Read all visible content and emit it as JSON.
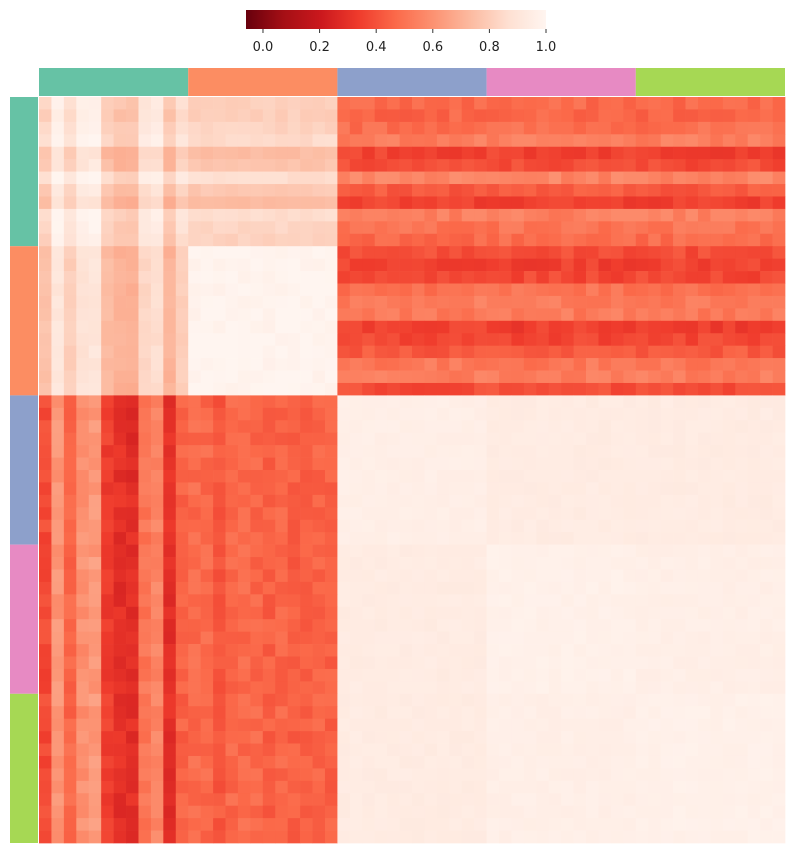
{
  "chart_data": {
    "type": "heatmap",
    "title": "",
    "xlabel": "",
    "ylabel": "",
    "colorbar": {
      "colormap": "Reds_r",
      "range": [
        -0.06,
        1.0
      ],
      "ticks": [
        0.0,
        0.2,
        0.4,
        0.6,
        0.8,
        1.0
      ],
      "tick_labels": [
        "0.0",
        "0.2",
        "0.4",
        "0.6",
        "0.8",
        "1.0"
      ],
      "placement": "top-center"
    },
    "groups": [
      {
        "color": "#66c2a5"
      },
      {
        "color": "#fc8d62"
      },
      {
        "color": "#8da0cb"
      },
      {
        "color": "#e78ac3"
      },
      {
        "color": "#a6d854"
      }
    ],
    "block_means": [
      [
        0.85,
        0.8,
        0.45,
        0.45,
        0.45
      ],
      [
        0.8,
        0.99,
        0.45,
        0.45,
        0.45
      ],
      [
        0.45,
        0.45,
        0.96,
        0.94,
        0.94
      ],
      [
        0.45,
        0.45,
        0.94,
        0.97,
        0.96
      ],
      [
        0.45,
        0.45,
        0.94,
        0.96,
        0.97
      ]
    ],
    "grid": false,
    "axis_ticks": false
  }
}
